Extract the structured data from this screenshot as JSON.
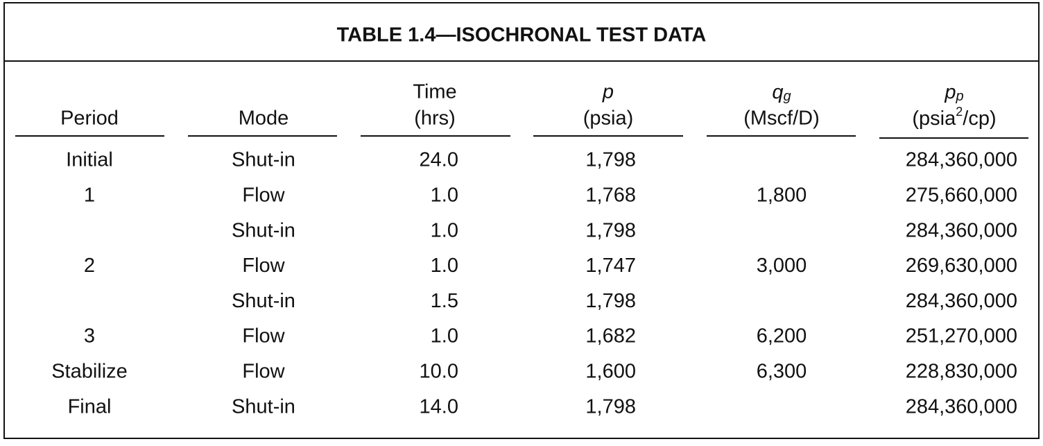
{
  "title": "TABLE 1.4—ISOCHRONAL TEST DATA",
  "table": {
    "headers": [
      {
        "name": "Period"
      },
      {
        "name": "Mode"
      },
      {
        "name": "Time",
        "unit": "(hrs)"
      },
      {
        "name": "p",
        "unit": "(psia)"
      },
      {
        "name": "q",
        "subscript": "g",
        "unit": "(Mscf/D)"
      },
      {
        "name": "p",
        "subscript": "p",
        "unit_parts": [
          "(psia",
          "2",
          "/cp)"
        ]
      }
    ],
    "rows": [
      [
        "Initial",
        "Shut-in",
        "24.0",
        "1,798",
        null,
        "284,360,000"
      ],
      [
        "1",
        "Flow",
        "1.0",
        "1,768",
        "1,800",
        "275,660,000"
      ],
      [
        null,
        "Shut-in",
        "1.0",
        "1,798",
        null,
        "284,360,000"
      ],
      [
        "2",
        "Flow",
        "1.0",
        "1,747",
        "3,000",
        "269,630,000"
      ],
      [
        null,
        "Shut-in",
        "1.5",
        "1,798",
        null,
        "284,360,000"
      ],
      [
        "3",
        "Flow",
        "1.0",
        "1,682",
        "6,200",
        "251,270,000"
      ],
      [
        "Stabilize",
        "Flow",
        "10.0",
        "1,600",
        "6,300",
        "228,830,000"
      ],
      [
        "Final",
        "Shut-in",
        "14.0",
        "1,798",
        null,
        "284,360,000"
      ]
    ]
  }
}
